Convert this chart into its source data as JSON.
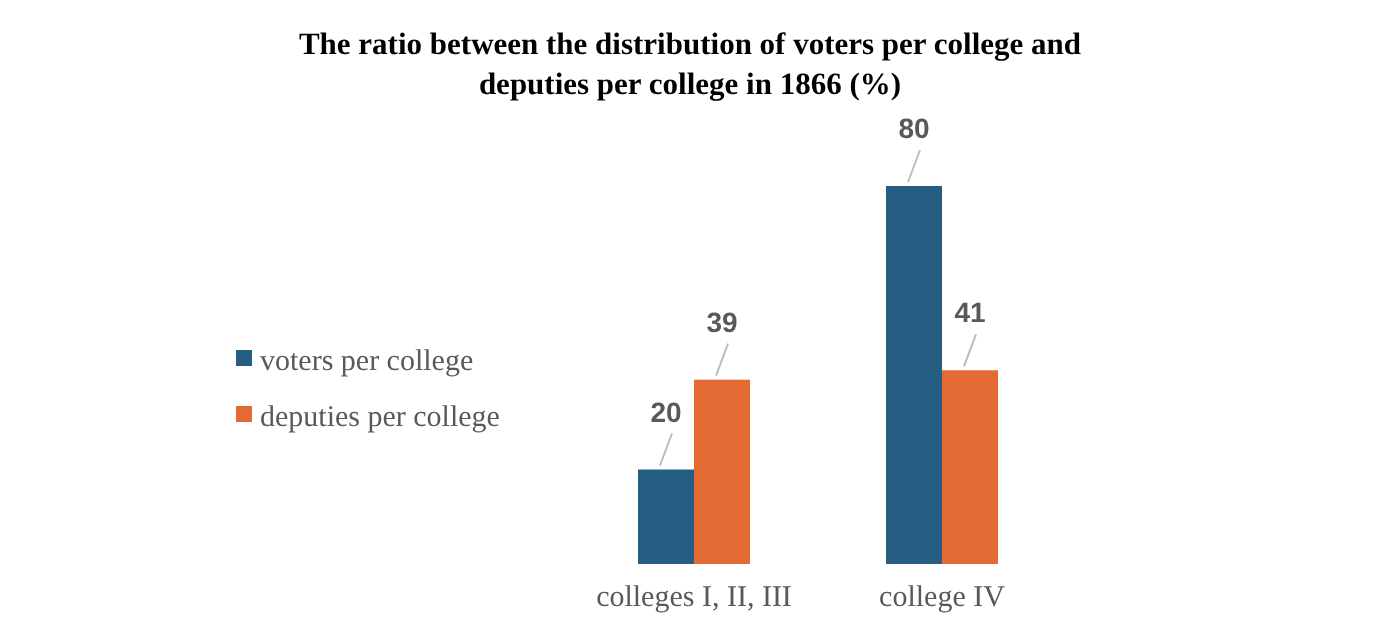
{
  "chart_data": {
    "type": "bar",
    "title": "The ratio between the distribution of voters per college and deputies per college in 1866 (%)",
    "categories": [
      "colleges I, II, III",
      "college IV"
    ],
    "series": [
      {
        "name": "voters per college",
        "color": "#255e82",
        "values": [
          20,
          80
        ]
      },
      {
        "name": "deputies per college",
        "color": "#e46c34",
        "values": [
          39,
          41
        ]
      }
    ],
    "data_labels": true,
    "legend": "left",
    "grid": false
  }
}
